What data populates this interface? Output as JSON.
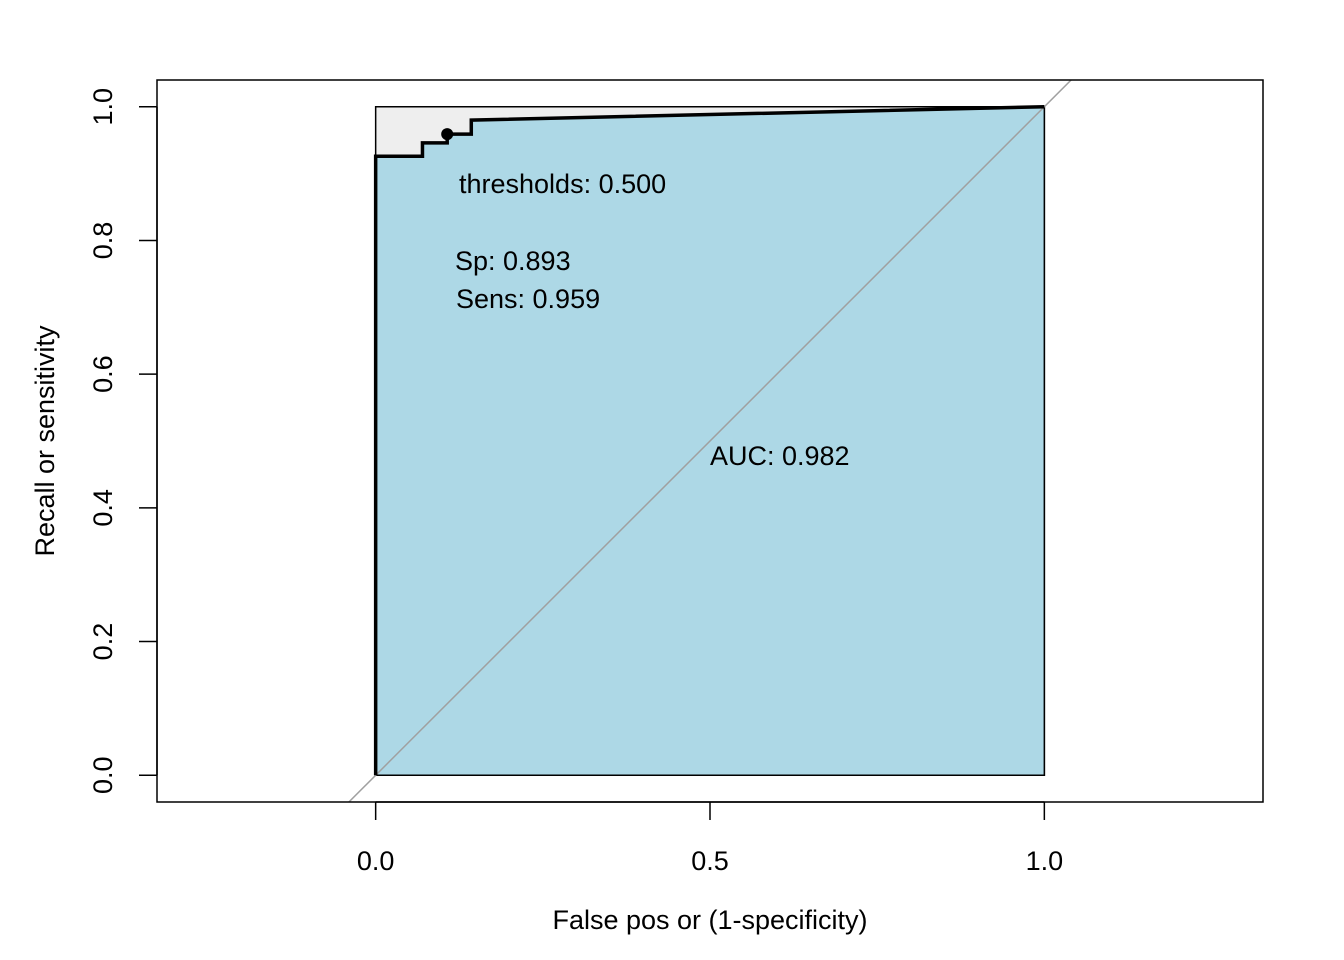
{
  "chart_data": {
    "type": "line",
    "title": "",
    "xlabel": "False pos or (1-specificity)",
    "ylabel": "Recall or sensitivity",
    "xlim": [
      -0.327,
      1.327
    ],
    "ylim": [
      -0.04,
      1.04
    ],
    "xticks": [
      0.0,
      0.5,
      1.0
    ],
    "xtick_labels": [
      "0.0",
      "0.5",
      "1.0"
    ],
    "yticks": [
      0.0,
      0.2,
      0.4,
      0.6,
      0.8,
      1.0
    ],
    "ytick_labels": [
      "0.0",
      "0.2",
      "0.4",
      "0.6",
      "0.8",
      "1.0"
    ],
    "grid": false,
    "auc_polygon_color": "#add8e6",
    "max_region_color": "#eeeeee",
    "diagonal_color": "#a0a0a0",
    "curve_color": "#000000",
    "series": [
      {
        "points": [
          {
            "x": 0.0,
            "y": 0.0
          },
          {
            "x": 0.0,
            "y": 0.926
          },
          {
            "x": 0.07,
            "y": 0.926
          },
          {
            "x": 0.07,
            "y": 0.946
          },
          {
            "x": 0.107,
            "y": 0.946
          },
          {
            "x": 0.107,
            "y": 0.959
          },
          {
            "x": 0.143,
            "y": 0.959
          },
          {
            "x": 0.143,
            "y": 0.98
          },
          {
            "x": 1.0,
            "y": 1.0
          }
        ]
      }
    ],
    "best_threshold_point": {
      "x": 0.107,
      "y": 0.959
    },
    "annotations": {
      "threshold": "thresholds: 0.500",
      "specificity": "Sp: 0.893",
      "sensitivity": "Sens: 0.959",
      "auc": "AUC: 0.982"
    }
  }
}
